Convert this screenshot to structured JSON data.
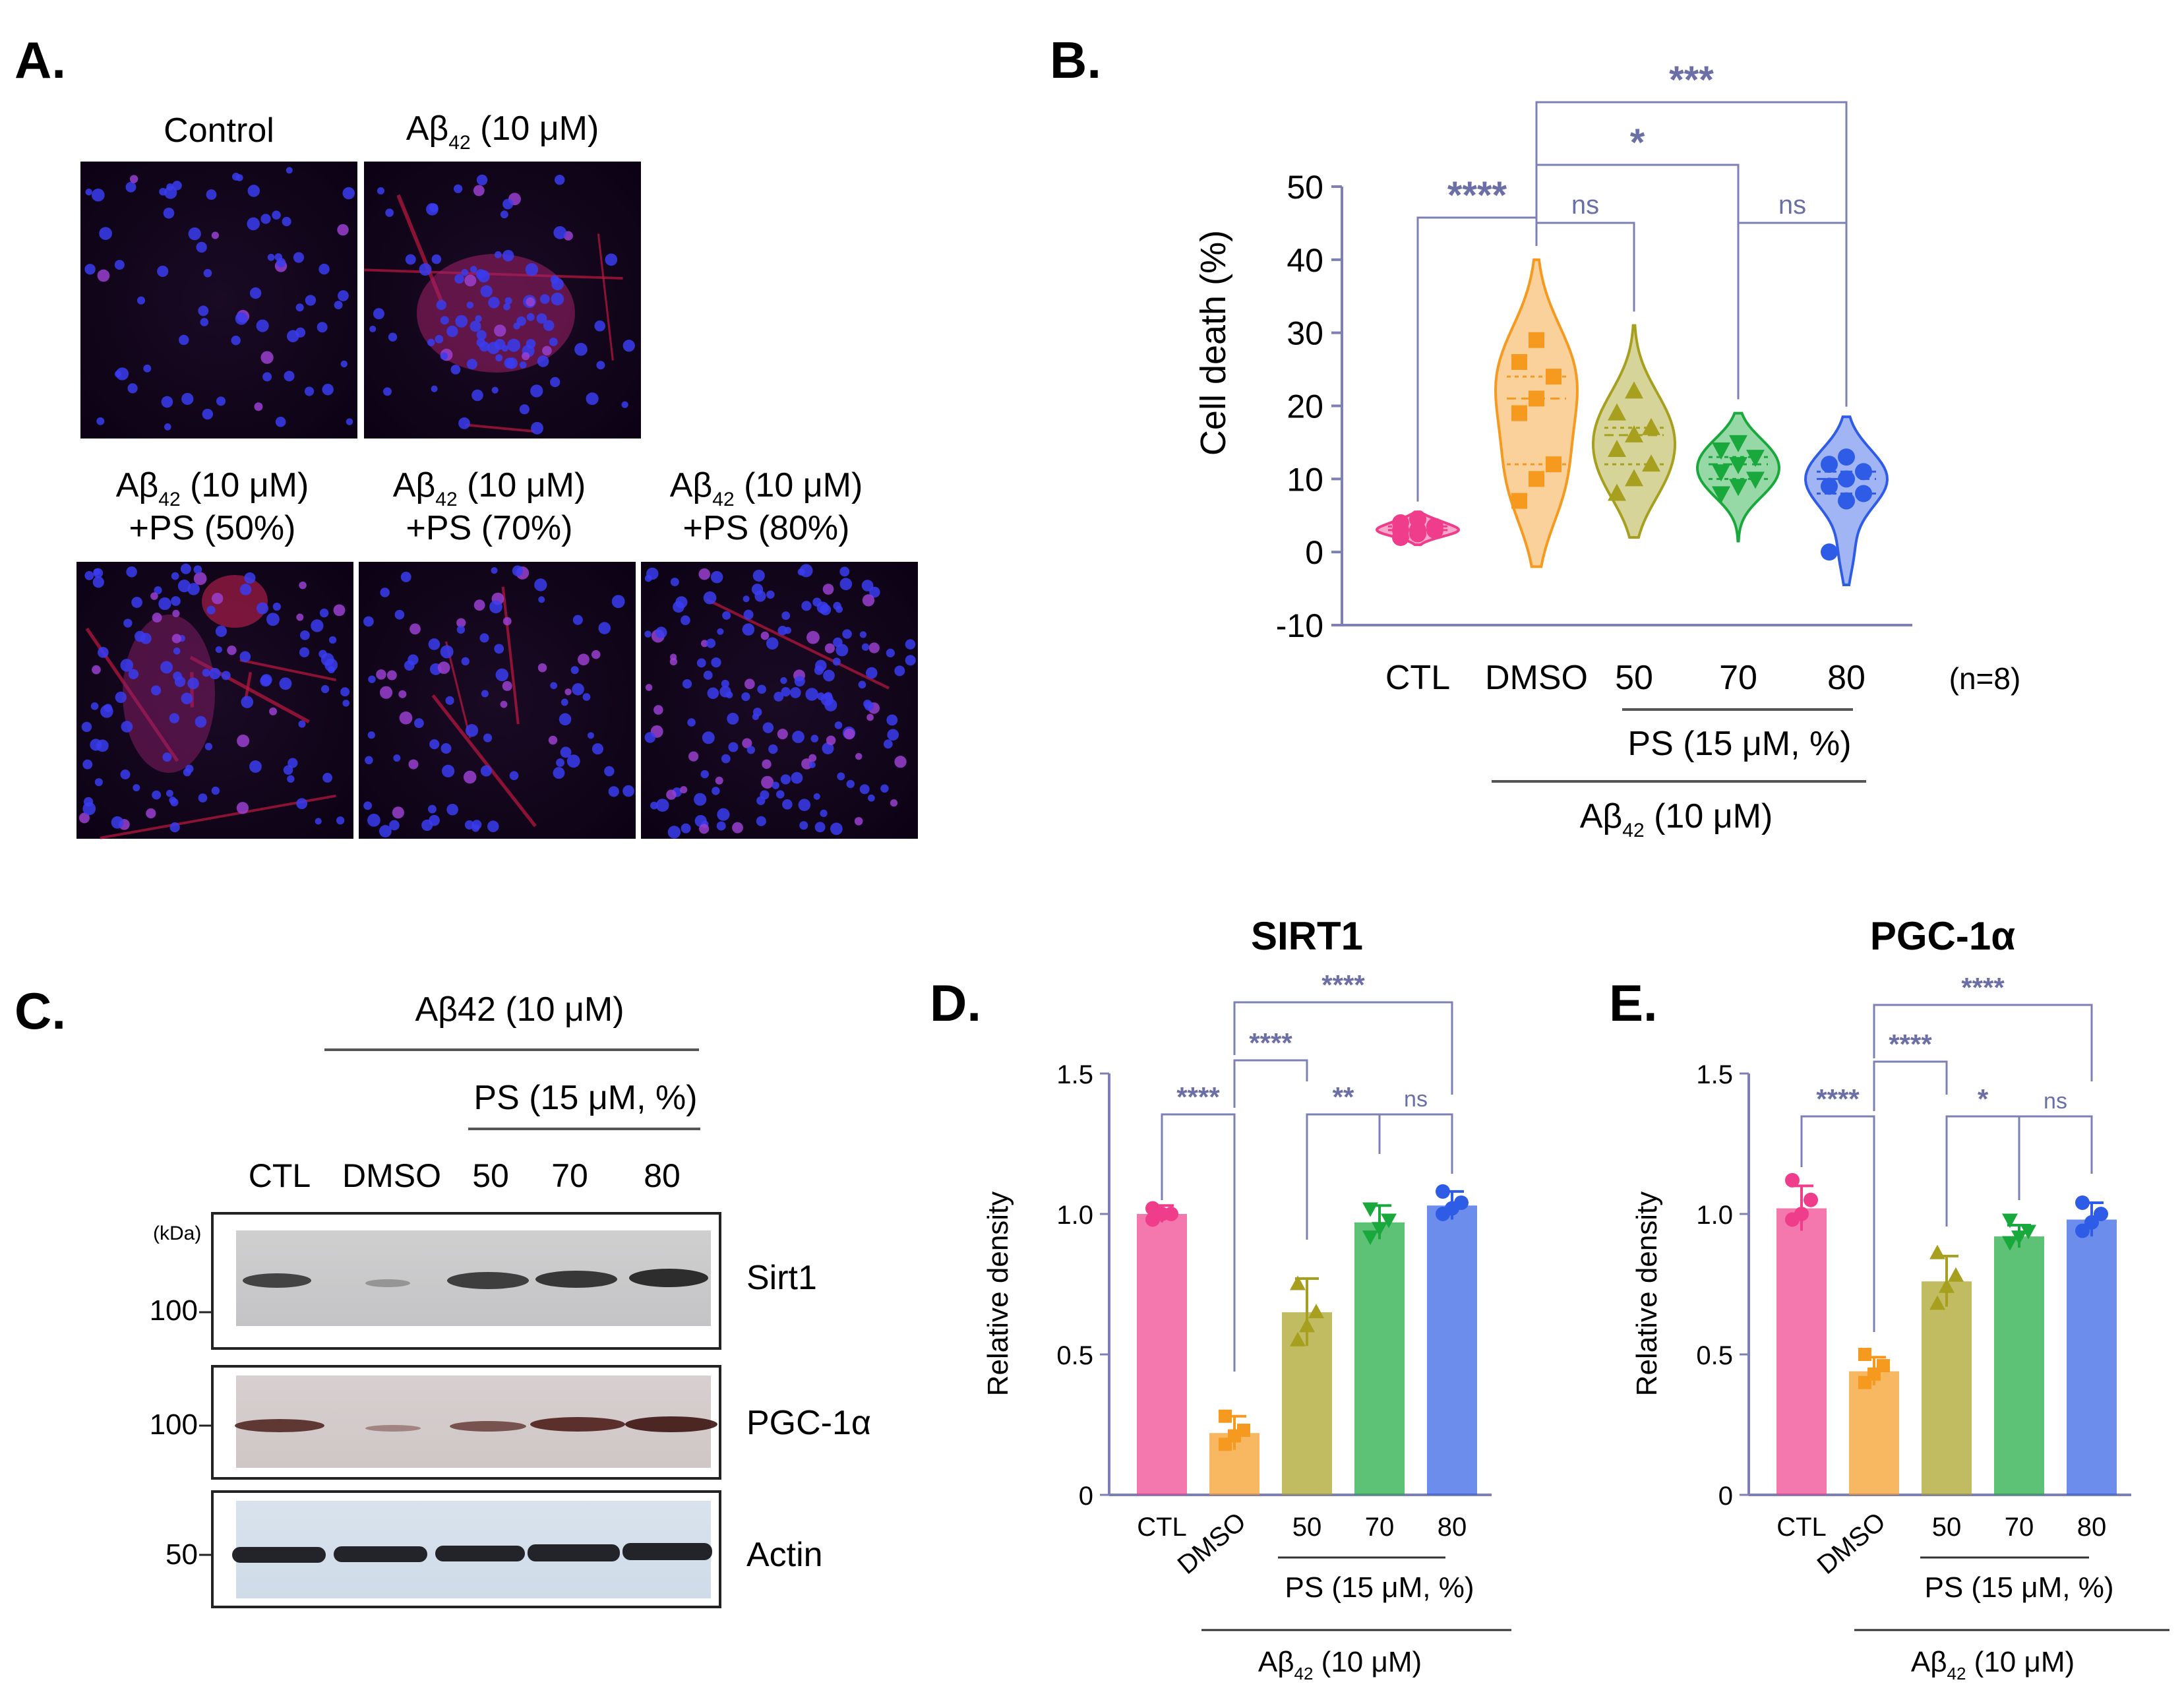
{
  "panels": {
    "A": {
      "letter": "A.",
      "images": [
        {
          "label_line1": "Control",
          "label_line2": "",
          "label_sub": ""
        },
        {
          "label_line1": "Aβ",
          "label_sub": "42",
          "label_rest": " (10 μM)",
          "label_line2": ""
        },
        {
          "label_line1": "Aβ",
          "label_sub": "42",
          "label_rest": " (10 μM)",
          "label_line2": "+PS (50%)"
        },
        {
          "label_line1": "Aβ",
          "label_sub": "42",
          "label_rest": " (10 μM)",
          "label_line2": "+PS (70%)"
        },
        {
          "label_line1": "Aβ",
          "label_sub": "42",
          "label_rest": " (10 μM)",
          "label_line2": "+PS (80%)"
        }
      ]
    },
    "B": {
      "letter": "B.",
      "n_note": "(n=8)",
      "group1_label": "PS (15 μM, %)",
      "group2_label_main": "Aβ",
      "group2_label_sub": "42",
      "group2_label_rest": " (10 μM)"
    },
    "C": {
      "letter": "C.",
      "treatment_label": "Aβ42 (10 μM)",
      "ps_label": "PS (15 μM, %)",
      "lanes": [
        "CTL",
        "DMSO",
        "50",
        "70",
        "80"
      ],
      "kda_label": "(kDa)",
      "blots": [
        {
          "name": "Sirt1",
          "marker": "100"
        },
        {
          "name": "PGC-1α",
          "marker": "100"
        },
        {
          "name": "Actin",
          "marker": "50"
        }
      ]
    },
    "D": {
      "letter": "D.",
      "group1_label": "PS (15 μM, %)",
      "group2_label_main": "Aβ",
      "group2_label_sub": "42",
      "group2_label_rest": " (10 μM)"
    },
    "E": {
      "letter": "E.",
      "group1_label": "PS (15 μM, %)",
      "group2_label_main": "Aβ",
      "group2_label_sub": "42",
      "group2_label_rest": " (10 μM)"
    }
  },
  "colors": {
    "CTL": "#ef3d8c",
    "DMSO": "#f59a1f",
    "50": "#a6a01e",
    "70": "#19a83c",
    "80": "#2f5ce6",
    "sig": "#6b6fa6",
    "axis": "#7d80b5"
  },
  "chart_data": [
    {
      "panel": "B",
      "type": "violin",
      "title": "",
      "xlabel": "",
      "ylabel": "Cell death (%)",
      "ylim": [
        -10,
        50
      ],
      "yticks": [
        -10,
        0,
        10,
        20,
        30,
        40,
        50
      ],
      "categories": [
        "CTL",
        "DMSO",
        "50",
        "70",
        "80"
      ],
      "series": [
        {
          "category": "CTL",
          "points": [
            2,
            2.5,
            3,
            3,
            3,
            3.5,
            4,
            4.5
          ],
          "range": [
            1,
            5.5
          ]
        },
        {
          "category": "DMSO",
          "points": [
            7,
            10,
            12,
            19,
            21,
            24,
            26,
            29
          ],
          "range": [
            -2,
            40
          ]
        },
        {
          "category": "50",
          "points": [
            8,
            10,
            12,
            14,
            16,
            17,
            19,
            22
          ],
          "range": [
            2,
            31
          ]
        },
        {
          "category": "70",
          "points": [
            8,
            9,
            10,
            11,
            12,
            13,
            14,
            15
          ],
          "range": [
            1.5,
            19
          ]
        },
        {
          "category": "80",
          "points": [
            0,
            7,
            8,
            9,
            10,
            11,
            12,
            13
          ],
          "range": [
            -4.5,
            18.5
          ]
        }
      ],
      "significance": [
        {
          "from": "CTL",
          "to": "DMSO",
          "label": "****"
        },
        {
          "from": "DMSO",
          "to": "50",
          "label": "ns"
        },
        {
          "from": "70",
          "to": "80",
          "label": "ns"
        },
        {
          "from": "DMSO",
          "to": "70",
          "label": "*"
        },
        {
          "from": "DMSO",
          "to": "80",
          "label": "***"
        }
      ]
    },
    {
      "panel": "D",
      "type": "bar",
      "title": "SIRT1",
      "ylabel": "Relative density",
      "ylim": [
        0,
        1.5
      ],
      "yticks": [
        "0",
        "0.5",
        "1.0",
        "1.5"
      ],
      "categories": [
        "CTL",
        "DMSO",
        "50",
        "70",
        "80"
      ],
      "values": [
        1.0,
        0.22,
        0.65,
        0.97,
        1.03
      ],
      "errors": [
        0.03,
        0.06,
        0.12,
        0.06,
        0.05
      ],
      "points": [
        [
          0.98,
          1.0,
          1.0,
          1.02
        ],
        [
          0.18,
          0.21,
          0.23,
          0.28
        ],
        [
          0.55,
          0.6,
          0.65,
          0.75
        ],
        [
          0.92,
          0.95,
          0.98,
          1.02
        ],
        [
          1.0,
          1.02,
          1.04,
          1.08
        ]
      ],
      "significance": [
        {
          "from": "CTL",
          "to": "DMSO",
          "label": "****"
        },
        {
          "from": "DMSO",
          "to": "50",
          "label": "****"
        },
        {
          "from": "50",
          "to": "70",
          "label": "**"
        },
        {
          "from": "70",
          "to": "80",
          "label": "ns"
        },
        {
          "from": "DMSO",
          "to": "80",
          "label": "****"
        }
      ]
    },
    {
      "panel": "E",
      "type": "bar",
      "title": "PGC-1α",
      "ylabel": "Relative density",
      "ylim": [
        0,
        1.5
      ],
      "yticks": [
        "0",
        "0.5",
        "1.0",
        "1.5"
      ],
      "categories": [
        "CTL",
        "DMSO",
        "50",
        "70",
        "80"
      ],
      "values": [
        1.02,
        0.44,
        0.76,
        0.92,
        0.98
      ],
      "errors": [
        0.08,
        0.05,
        0.09,
        0.04,
        0.06
      ],
      "points": [
        [
          0.98,
          1.0,
          1.05,
          1.12
        ],
        [
          0.4,
          0.43,
          0.46,
          0.5
        ],
        [
          0.68,
          0.74,
          0.78,
          0.86
        ],
        [
          0.9,
          0.92,
          0.94,
          0.98
        ],
        [
          0.94,
          0.97,
          1.0,
          1.04
        ]
      ],
      "significance": [
        {
          "from": "CTL",
          "to": "DMSO",
          "label": "****"
        },
        {
          "from": "DMSO",
          "to": "50",
          "label": "****"
        },
        {
          "from": "50",
          "to": "70",
          "label": "*"
        },
        {
          "from": "70",
          "to": "80",
          "label": "ns"
        },
        {
          "from": "DMSO",
          "to": "80",
          "label": "****"
        }
      ]
    }
  ]
}
